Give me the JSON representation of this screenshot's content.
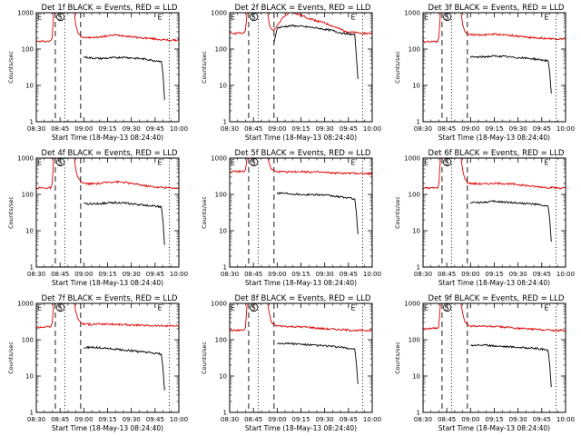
{
  "figure": {
    "x_axis_label": "Start Time (18-May-13 08:24:40)",
    "y_axis_label": "Counts/sec",
    "x_tick_labels": [
      "08:30",
      "08:45",
      "09:00",
      "09:15",
      "09:30",
      "09:45",
      "10:00"
    ],
    "y_tick_labels": [
      "1",
      "10",
      "100",
      "1000"
    ],
    "colors": {
      "events": "#000000",
      "lld": "#e00000",
      "frame": "#000000"
    }
  },
  "chart_data": [
    {
      "type": "line",
      "title": "Det 1f BLACK = Events, RED = LLD",
      "xlabel": "Start Time (18-May-13 08:24:40)",
      "ylabel": "Counts/sec",
      "x_units": "minutes after 08:30",
      "xlim": [
        0,
        90
      ],
      "ylim": [
        1,
        1000
      ],
      "yscale": "log",
      "markers": [
        {
          "label": "E",
          "x": 2
        },
        {
          "label": "S",
          "x": 15
        },
        {
          "label": "E",
          "x": 78
        }
      ],
      "vlines_dashed": [
        12,
        28
      ],
      "vlines_dotted": [
        18,
        84
      ],
      "series": [
        {
          "name": "LLD",
          "color": "#e00000",
          "x": [
            0,
            9,
            10,
            11,
            14,
            24,
            25,
            26,
            28,
            30,
            35,
            40,
            45,
            50,
            55,
            60,
            65,
            70,
            75,
            80,
            85,
            90
          ],
          "y": [
            160,
            165,
            200,
            1000,
            1000,
            1000,
            450,
            300,
            230,
            210,
            205,
            215,
            230,
            245,
            235,
            220,
            205,
            200,
            190,
            180,
            175,
            175
          ]
        },
        {
          "name": "Events",
          "color": "#000000",
          "x": [
            30,
            35,
            40,
            45,
            50,
            55,
            60,
            65,
            70,
            75,
            79,
            80,
            81
          ],
          "y": [
            60,
            57,
            55,
            56,
            58,
            60,
            57,
            55,
            52,
            48,
            46,
            20,
            4
          ]
        }
      ]
    },
    {
      "type": "line",
      "title": "Det 2f BLACK = Events, RED = LLD",
      "xlabel": "Start Time (18-May-13 08:24:40)",
      "ylabel": "Counts/sec",
      "x_units": "minutes after 08:30",
      "xlim": [
        0,
        90
      ],
      "ylim": [
        1,
        1000
      ],
      "yscale": "log",
      "markers": [
        {
          "label": "E",
          "x": 2
        },
        {
          "label": "S",
          "x": 15
        },
        {
          "label": "E",
          "x": 78
        }
      ],
      "vlines_dashed": [
        12,
        28
      ],
      "vlines_dotted": [
        18,
        84
      ],
      "series": [
        {
          "name": "LLD",
          "color": "#e00000",
          "x": [
            0,
            9,
            10,
            11,
            14,
            24,
            25,
            26,
            28,
            30,
            34,
            38,
            42,
            46,
            50,
            55,
            60,
            65,
            70,
            75,
            80,
            85,
            90
          ],
          "y": [
            270,
            280,
            330,
            1000,
            1000,
            1000,
            500,
            350,
            320,
            450,
            750,
            1050,
            950,
            820,
            700,
            600,
            520,
            430,
            350,
            300,
            280,
            270,
            270
          ]
        },
        {
          "name": "Events",
          "color": "#000000",
          "x": [
            28,
            30,
            35,
            40,
            45,
            50,
            55,
            60,
            65,
            70,
            75,
            79,
            80,
            81
          ],
          "y": [
            150,
            380,
            420,
            440,
            420,
            400,
            380,
            350,
            320,
            280,
            260,
            250,
            60,
            15
          ]
        }
      ]
    },
    {
      "type": "line",
      "title": "Det 3f BLACK = Events, RED = LLD",
      "xlabel": "Start Time (18-May-13 08:24:40)",
      "ylabel": "Counts/sec",
      "x_units": "minutes after 08:30",
      "xlim": [
        0,
        90
      ],
      "ylim": [
        1,
        1000
      ],
      "yscale": "log",
      "markers": [
        {
          "label": "E",
          "x": 2
        },
        {
          "label": "S",
          "x": 15
        },
        {
          "label": "E",
          "x": 78
        }
      ],
      "vlines_dashed": [
        12,
        28
      ],
      "vlines_dotted": [
        18,
        84
      ],
      "series": [
        {
          "name": "LLD",
          "color": "#e00000",
          "x": [
            0,
            9,
            10,
            11,
            14,
            24,
            25,
            26,
            28,
            30,
            35,
            40,
            45,
            50,
            55,
            60,
            65,
            70,
            75,
            80,
            85,
            90
          ],
          "y": [
            160,
            165,
            200,
            1000,
            1000,
            1000,
            500,
            330,
            260,
            250,
            245,
            250,
            255,
            250,
            240,
            225,
            215,
            205,
            200,
            195,
            190,
            190
          ]
        },
        {
          "name": "Events",
          "color": "#000000",
          "x": [
            30,
            35,
            40,
            45,
            50,
            55,
            60,
            65,
            70,
            75,
            79,
            80,
            81
          ],
          "y": [
            60,
            60,
            62,
            64,
            63,
            60,
            58,
            56,
            54,
            50,
            48,
            22,
            6
          ]
        }
      ]
    },
    {
      "type": "line",
      "title": "Det 4f BLACK = Events, RED = LLD",
      "xlabel": "Start Time (18-May-13 08:24:40)",
      "ylabel": "Counts/sec",
      "x_units": "minutes after 08:30",
      "xlim": [
        0,
        90
      ],
      "ylim": [
        1,
        1000
      ],
      "yscale": "log",
      "markers": [
        {
          "label": "E",
          "x": 2
        },
        {
          "label": "S",
          "x": 15
        },
        {
          "label": "E",
          "x": 78
        }
      ],
      "vlines_dashed": [
        12,
        28
      ],
      "vlines_dotted": [
        18,
        84
      ],
      "series": [
        {
          "name": "LLD",
          "color": "#e00000",
          "x": [
            0,
            9,
            10,
            11,
            14,
            24,
            25,
            26,
            28,
            30,
            35,
            40,
            45,
            50,
            55,
            60,
            65,
            70,
            75,
            80,
            85,
            90
          ],
          "y": [
            150,
            150,
            190,
            1000,
            1000,
            1000,
            450,
            300,
            220,
            200,
            195,
            200,
            215,
            225,
            215,
            200,
            185,
            170,
            160,
            155,
            150,
            150
          ]
        },
        {
          "name": "Events",
          "color": "#000000",
          "x": [
            30,
            35,
            40,
            45,
            50,
            55,
            60,
            65,
            70,
            75,
            79,
            80,
            81
          ],
          "y": [
            55,
            55,
            56,
            58,
            60,
            58,
            55,
            52,
            50,
            48,
            45,
            18,
            4
          ]
        }
      ]
    },
    {
      "type": "line",
      "title": "Det 5f BLACK = Events, RED = LLD",
      "xlabel": "Start Time (18-May-13 08:24:40)",
      "ylabel": "Counts/sec",
      "x_units": "minutes after 08:30",
      "xlim": [
        0,
        90
      ],
      "ylim": [
        1,
        1000
      ],
      "yscale": "log",
      "markers": [
        {
          "label": "E",
          "x": 2
        },
        {
          "label": "S",
          "x": 15
        },
        {
          "label": "E",
          "x": 78
        }
      ],
      "vlines_dashed": [
        12,
        28
      ],
      "vlines_dotted": [
        18,
        84
      ],
      "series": [
        {
          "name": "LLD",
          "color": "#e00000",
          "x": [
            0,
            9,
            10,
            11,
            14,
            24,
            25,
            26,
            28,
            30,
            35,
            40,
            45,
            50,
            55,
            60,
            65,
            70,
            75,
            80,
            85,
            90
          ],
          "y": [
            420,
            430,
            480,
            1000,
            1000,
            1000,
            700,
            520,
            440,
            420,
            415,
            420,
            425,
            420,
            410,
            400,
            390,
            385,
            380,
            380,
            375,
            375
          ]
        },
        {
          "name": "Events",
          "color": "#000000",
          "x": [
            30,
            35,
            40,
            45,
            50,
            55,
            60,
            65,
            70,
            75,
            79,
            80,
            81
          ],
          "y": [
            110,
            108,
            104,
            100,
            98,
            100,
            95,
            90,
            85,
            80,
            75,
            30,
            8
          ]
        }
      ]
    },
    {
      "type": "line",
      "title": "Det 6f BLACK = Events, RED = LLD",
      "xlabel": "Start Time (18-May-13 08:24:40)",
      "ylabel": "Counts/sec",
      "x_units": "minutes after 08:30",
      "xlim": [
        0,
        90
      ],
      "ylim": [
        1,
        1000
      ],
      "yscale": "log",
      "markers": [
        {
          "label": "E",
          "x": 2
        },
        {
          "label": "S",
          "x": 15
        },
        {
          "label": "E",
          "x": 78
        }
      ],
      "vlines_dashed": [
        12,
        28
      ],
      "vlines_dotted": [
        18,
        84
      ],
      "series": [
        {
          "name": "LLD",
          "color": "#e00000",
          "x": [
            0,
            9,
            10,
            11,
            14,
            24,
            25,
            26,
            28,
            30,
            35,
            40,
            45,
            50,
            55,
            60,
            65,
            70,
            75,
            80,
            85,
            90
          ],
          "y": [
            150,
            150,
            190,
            1000,
            1000,
            1000,
            480,
            300,
            215,
            200,
            195,
            195,
            200,
            200,
            195,
            185,
            175,
            165,
            160,
            155,
            150,
            150
          ]
        },
        {
          "name": "Events",
          "color": "#000000",
          "x": [
            30,
            35,
            40,
            45,
            50,
            55,
            60,
            65,
            70,
            75,
            79,
            80,
            81
          ],
          "y": [
            60,
            60,
            62,
            64,
            62,
            60,
            58,
            56,
            54,
            50,
            47,
            20,
            5
          ]
        }
      ]
    },
    {
      "type": "line",
      "title": "Det 7f BLACK = Events, RED = LLD",
      "xlabel": "Start Time (18-May-13 08:24:40)",
      "ylabel": "Counts/sec",
      "x_units": "minutes after 08:30",
      "xlim": [
        0,
        90
      ],
      "ylim": [
        1,
        1000
      ],
      "yscale": "log",
      "markers": [
        {
          "label": "E",
          "x": 2
        },
        {
          "label": "S",
          "x": 15
        },
        {
          "label": "E",
          "x": 78
        }
      ],
      "vlines_dashed": [
        12,
        28
      ],
      "vlines_dotted": [
        18,
        84
      ],
      "series": [
        {
          "name": "LLD",
          "color": "#e00000",
          "x": [
            0,
            9,
            10,
            11,
            14,
            24,
            25,
            26,
            28,
            30,
            35,
            40,
            45,
            50,
            55,
            60,
            65,
            70,
            75,
            80,
            85,
            90
          ],
          "y": [
            220,
            230,
            280,
            1000,
            1000,
            1000,
            600,
            400,
            300,
            270,
            265,
            270,
            270,
            265,
            260,
            255,
            250,
            245,
            245,
            240,
            240,
            240
          ]
        },
        {
          "name": "Events",
          "color": "#000000",
          "x": [
            30,
            35,
            40,
            45,
            50,
            55,
            60,
            65,
            70,
            75,
            79,
            80,
            81
          ],
          "y": [
            60,
            62,
            60,
            58,
            55,
            52,
            50,
            47,
            45,
            42,
            40,
            16,
            4
          ]
        }
      ]
    },
    {
      "type": "line",
      "title": "Det 8f BLACK = Events, RED = LLD",
      "xlabel": "Start Time (18-May-13 08:24:40)",
      "ylabel": "Counts/sec",
      "x_units": "minutes after 08:30",
      "xlim": [
        0,
        90
      ],
      "ylim": [
        1,
        1000
      ],
      "yscale": "log",
      "markers": [
        {
          "label": "E",
          "x": 2
        },
        {
          "label": "S",
          "x": 15
        },
        {
          "label": "E",
          "x": 78
        }
      ],
      "vlines_dashed": [
        12,
        28
      ],
      "vlines_dotted": [
        18,
        84
      ],
      "series": [
        {
          "name": "LLD",
          "color": "#e00000",
          "x": [
            0,
            9,
            10,
            11,
            14,
            24,
            25,
            26,
            28,
            30,
            35,
            40,
            45,
            50,
            55,
            60,
            65,
            70,
            75,
            80,
            85,
            90
          ],
          "y": [
            180,
            185,
            220,
            1000,
            1000,
            1000,
            520,
            330,
            250,
            240,
            235,
            230,
            225,
            220,
            210,
            200,
            195,
            190,
            185,
            180,
            180,
            180
          ]
        },
        {
          "name": "Events",
          "color": "#000000",
          "x": [
            30,
            35,
            40,
            45,
            50,
            55,
            60,
            65,
            70,
            75,
            79,
            80,
            81
          ],
          "y": [
            80,
            80,
            78,
            75,
            72,
            70,
            68,
            65,
            62,
            58,
            55,
            22,
            6
          ]
        }
      ]
    },
    {
      "type": "line",
      "title": "Det 9f BLACK = Events, RED = LLD",
      "xlabel": "Start Time (18-May-13 08:24:40)",
      "ylabel": "Counts/sec",
      "x_units": "minutes after 08:30",
      "xlim": [
        0,
        90
      ],
      "ylim": [
        1,
        1000
      ],
      "yscale": "log",
      "markers": [
        {
          "label": "E",
          "x": 2
        },
        {
          "label": "S",
          "x": 15
        },
        {
          "label": "E",
          "x": 78
        }
      ],
      "vlines_dashed": [
        12,
        28
      ],
      "vlines_dotted": [
        18,
        84
      ],
      "series": [
        {
          "name": "LLD",
          "color": "#e00000",
          "x": [
            0,
            9,
            10,
            11,
            14,
            24,
            25,
            26,
            28,
            30,
            35,
            40,
            45,
            50,
            55,
            60,
            65,
            70,
            75,
            80,
            85,
            90
          ],
          "y": [
            200,
            205,
            240,
            1000,
            1000,
            1000,
            520,
            340,
            260,
            240,
            235,
            235,
            230,
            225,
            215,
            205,
            200,
            195,
            190,
            185,
            180,
            180
          ]
        },
        {
          "name": "Events",
          "color": "#000000",
          "x": [
            30,
            35,
            40,
            45,
            50,
            55,
            60,
            65,
            70,
            75,
            79,
            80,
            81
          ],
          "y": [
            70,
            72,
            70,
            68,
            66,
            64,
            62,
            60,
            58,
            55,
            50,
            20,
            5
          ]
        }
      ]
    }
  ]
}
